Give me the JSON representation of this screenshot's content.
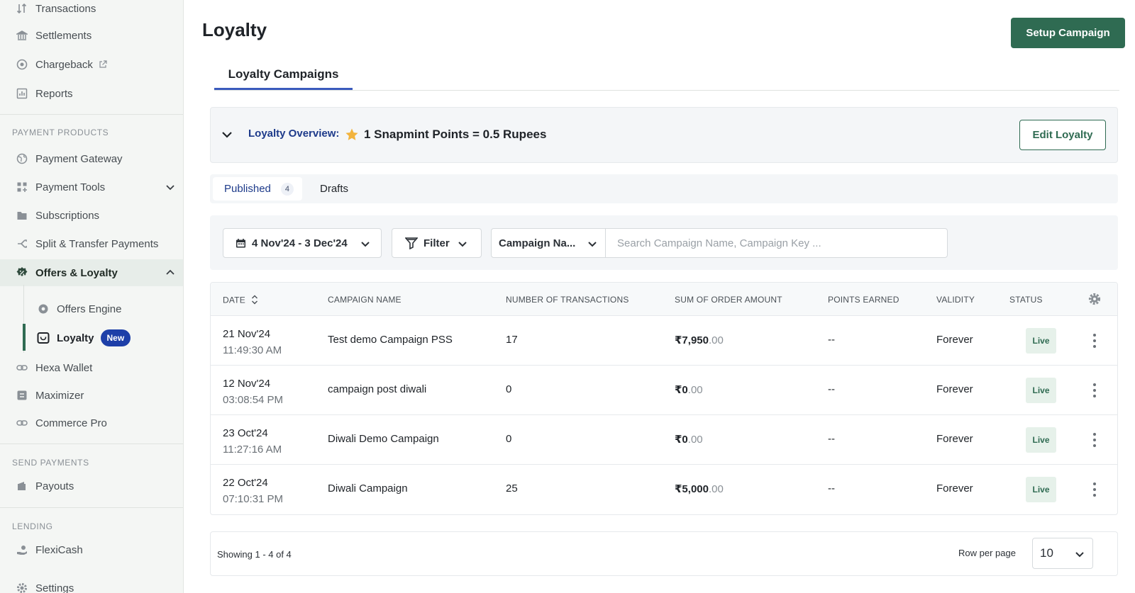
{
  "sidebar": {
    "items_top": [
      {
        "label": "Transactions",
        "icon": "arrows-updown-icon"
      },
      {
        "label": "Settlements",
        "icon": "bank-icon"
      },
      {
        "label": "Chargeback",
        "icon": "chargeback-icon",
        "external": "external-link-icon"
      },
      {
        "label": "Reports",
        "icon": "chart-icon"
      }
    ],
    "section_payment_products": "PAYMENT PRODUCTS",
    "payment_products": [
      {
        "label": "Payment Gateway",
        "icon": "globe-icon"
      },
      {
        "label": "Payment Tools",
        "icon": "grid-plus-icon"
      },
      {
        "label": "Subscriptions",
        "icon": "folder-icon"
      },
      {
        "label": "Split & Transfer Payments",
        "icon": "split-icon"
      },
      {
        "label": "Offers & Loyalty",
        "icon": "offers-icon"
      }
    ],
    "offers_sub": [
      {
        "label": "Offers Engine",
        "icon": "gear-badge-icon"
      },
      {
        "label": "Loyalty",
        "icon": "loyalty-icon",
        "badge": "New"
      }
    ],
    "more_products": [
      {
        "label": "Hexa Wallet",
        "icon": "link-icon"
      },
      {
        "label": "Maximizer",
        "icon": "maximizer-icon"
      },
      {
        "label": "Commerce Pro",
        "icon": "link-icon"
      }
    ],
    "section_send_payments": "SEND PAYMENTS",
    "send_payments": [
      {
        "label": "Payouts",
        "icon": "wallet-icon"
      }
    ],
    "section_lending": "LENDING",
    "lending": [
      {
        "label": "FlexiCash",
        "icon": "hand-coin-icon"
      }
    ],
    "bottom": [
      {
        "label": "Settings",
        "icon": "gear-icon"
      }
    ]
  },
  "header": {
    "title": "Loyalty",
    "setup_button": "Setup Campaign"
  },
  "tabs": {
    "main": "Loyalty Campaigns"
  },
  "overview": {
    "label": "Loyalty Overview:",
    "value": "1 Snapmint Points = 0.5 Rupees",
    "edit_button": "Edit Loyalty",
    "star_color": "#f2b33d"
  },
  "subtabs": {
    "published": "Published",
    "published_count": "4",
    "drafts": "Drafts"
  },
  "filters": {
    "date_range": "4 Nov'24 - 3 Dec'24",
    "filter_label": "Filter",
    "field_select": "Campaign Na...",
    "search_placeholder": "Search Campaign Name, Campaign Key ..."
  },
  "table": {
    "headers": [
      "DATE",
      "CAMPAIGN NAME",
      "NUMBER OF TRANSACTIONS",
      "SUM OF ORDER AMOUNT",
      "POINTS EARNED",
      "VALIDITY",
      "STATUS"
    ],
    "rows": [
      {
        "date": "21 Nov'24",
        "time": "11:49:30 AM",
        "name": "Test demo Campaign PSS",
        "txns": "17",
        "amount_whole": "₹7,950",
        "amount_dec": ".00",
        "points": "--",
        "validity": "Forever",
        "status": "Live"
      },
      {
        "date": "12 Nov'24",
        "time": "03:08:54 PM",
        "name": "campaign post diwali",
        "txns": "0",
        "amount_whole": "₹0",
        "amount_dec": ".00",
        "points": "--",
        "validity": "Forever",
        "status": "Live"
      },
      {
        "date": "23 Oct'24",
        "time": "11:27:16 AM",
        "name": "Diwali Demo Campaign",
        "txns": "0",
        "amount_whole": "₹0",
        "amount_dec": ".00",
        "points": "--",
        "validity": "Forever",
        "status": "Live"
      },
      {
        "date": "22 Oct'24",
        "time": "07:10:31 PM",
        "name": "Diwali Campaign",
        "txns": "25",
        "amount_whole": "₹5,000",
        "amount_dec": ".00",
        "points": "--",
        "validity": "Forever",
        "status": "Live"
      }
    ]
  },
  "footer": {
    "showing": "Showing 1 - 4 of 4",
    "rows_per_page_label": "Row per page",
    "rows_per_page_value": "10"
  },
  "colors": {
    "primary": "#2f6b52",
    "accent_blue": "#1d3fa8",
    "live_bg": "#e6f1ea"
  }
}
